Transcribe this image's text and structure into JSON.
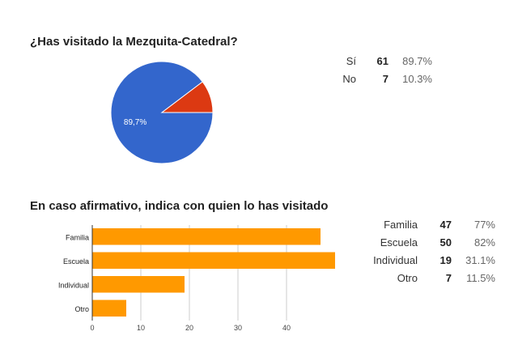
{
  "questions": [
    {
      "title": "¿Has visitado la Mezquita-Catedral?",
      "summary": [
        {
          "label": "Sí",
          "count": "61",
          "percent": "89.7%"
        },
        {
          "label": "No",
          "count": "7",
          "percent": "10.3%"
        }
      ]
    },
    {
      "title": "En caso afirmativo, indica con quien lo has visitado",
      "summary": [
        {
          "label": "Familia",
          "count": "47",
          "percent": "77%"
        },
        {
          "label": "Escuela",
          "count": "50",
          "percent": "82%"
        },
        {
          "label": "Individual",
          "count": "19",
          "percent": "31.1%"
        },
        {
          "label": "Otro",
          "count": "7",
          "percent": "11.5%"
        }
      ]
    }
  ],
  "chart_data": [
    {
      "type": "pie",
      "title": "¿Has visitado la Mezquita-Catedral?",
      "categories": [
        "Sí",
        "No"
      ],
      "values": [
        61,
        7
      ],
      "colors": [
        "#3366cc",
        "#dc3912"
      ],
      "slice_labels": [
        "89,7%",
        ""
      ]
    },
    {
      "type": "bar",
      "orientation": "horizontal",
      "title": "En caso afirmativo, indica con quien lo has visitado",
      "categories": [
        "Familia",
        "Escuela",
        "Individual",
        "Otro"
      ],
      "values": [
        47,
        50,
        19,
        7
      ],
      "color": "#ff9900",
      "xlim": [
        0,
        50
      ],
      "xticks": [
        0,
        10,
        20,
        30,
        40
      ],
      "grid": true
    }
  ]
}
